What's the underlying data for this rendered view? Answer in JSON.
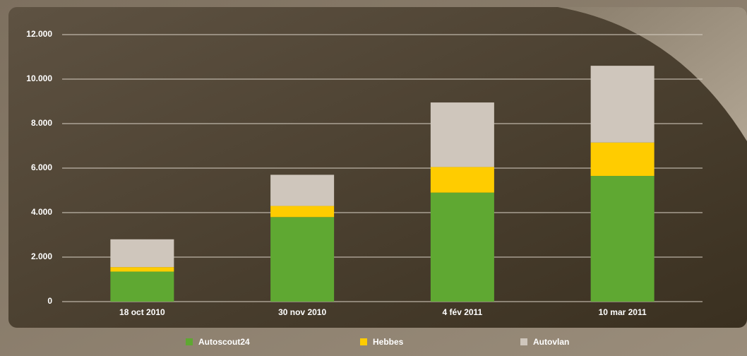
{
  "chart_data": {
    "type": "stacked_bar",
    "categories": [
      "18 oct 2010",
      "30 nov 2010",
      "4 fév 2011",
      "10 mar 2011"
    ],
    "series": [
      {
        "name": "Autoscout24",
        "color": "#5fa832",
        "values": [
          1350,
          3800,
          4900,
          5650
        ]
      },
      {
        "name": "Hebbes",
        "color": "#ffcc00",
        "values": [
          200,
          500,
          1150,
          1500
        ]
      },
      {
        "name": "Autovlan",
        "color": "#cfc6bc",
        "values": [
          1250,
          1400,
          2900,
          3450
        ]
      }
    ],
    "ylim": [
      0,
      12000
    ],
    "yticks": [
      0,
      {
        "value": 2000,
        "label": "2.000"
      },
      {
        "value": 4000,
        "label": "4.000"
      },
      {
        "value": 6000,
        "label": "6.000"
      },
      {
        "value": 8000,
        "label": "8.000"
      },
      {
        "value": 10000,
        "label": "10.000"
      },
      {
        "value": 12000,
        "label": "12.000"
      }
    ],
    "grid": true,
    "legend": "bottom"
  }
}
